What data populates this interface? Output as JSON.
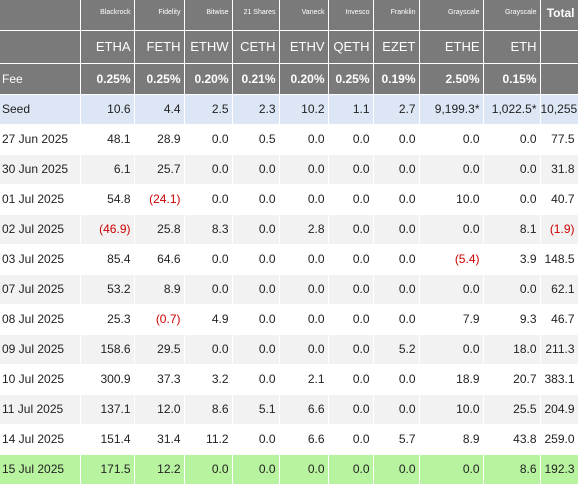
{
  "issuers": [
    "Blackrock",
    "Fidelity",
    "Bitwise",
    "21 Shares",
    "Vaneck",
    "Invesco",
    "Franklin",
    "Grayscale",
    "Grayscale"
  ],
  "total_label": "Total",
  "tickers": [
    "ETHA",
    "FETH",
    "ETHW",
    "CETH",
    "ETHV",
    "QETH",
    "EZET",
    "ETHE",
    "ETH"
  ],
  "fee_label": "Fee",
  "fees": [
    "0.25%",
    "0.25%",
    "0.20%",
    "0.21%",
    "0.20%",
    "0.25%",
    "0.19%",
    "2.50%",
    "0.15%"
  ],
  "rows": [
    {
      "date": "Seed",
      "values": [
        "10.6",
        "4.4",
        "2.5",
        "2.3",
        "10.2",
        "1.1",
        "2.7",
        "9,199.3*",
        "1,022.5*"
      ],
      "total": "10,255",
      "style": "seed"
    },
    {
      "date": "27 Jun 2025",
      "values": [
        "48.1",
        "28.9",
        "0.0",
        "0.5",
        "0.0",
        "0.0",
        "0.0",
        "0.0",
        "0.0"
      ],
      "total": "77.5"
    },
    {
      "date": "30 Jun 2025",
      "values": [
        "6.1",
        "25.7",
        "0.0",
        "0.0",
        "0.0",
        "0.0",
        "0.0",
        "0.0",
        "0.0"
      ],
      "total": "31.8"
    },
    {
      "date": "01 Jul 2025",
      "values": [
        "54.8",
        "(24.1)",
        "0.0",
        "0.0",
        "0.0",
        "0.0",
        "0.0",
        "10.0",
        "0.0"
      ],
      "total": "40.7"
    },
    {
      "date": "02 Jul 2025",
      "values": [
        "(46.9)",
        "25.8",
        "8.3",
        "0.0",
        "2.8",
        "0.0",
        "0.0",
        "0.0",
        "8.1"
      ],
      "total": "(1.9)"
    },
    {
      "date": "03 Jul 2025",
      "values": [
        "85.4",
        "64.6",
        "0.0",
        "0.0",
        "0.0",
        "0.0",
        "0.0",
        "(5.4)",
        "3.9"
      ],
      "total": "148.5"
    },
    {
      "date": "07 Jul 2025",
      "values": [
        "53.2",
        "8.9",
        "0.0",
        "0.0",
        "0.0",
        "0.0",
        "0.0",
        "0.0",
        "0.0"
      ],
      "total": "62.1"
    },
    {
      "date": "08 Jul 2025",
      "values": [
        "25.3",
        "(0.7)",
        "4.9",
        "0.0",
        "0.0",
        "0.0",
        "0.0",
        "7.9",
        "9.3"
      ],
      "total": "46.7"
    },
    {
      "date": "09 Jul 2025",
      "values": [
        "158.6",
        "29.5",
        "0.0",
        "0.0",
        "0.0",
        "0.0",
        "5.2",
        "0.0",
        "18.0"
      ],
      "total": "211.3"
    },
    {
      "date": "10 Jul 2025",
      "values": [
        "300.9",
        "37.3",
        "3.2",
        "0.0",
        "2.1",
        "0.0",
        "0.0",
        "18.9",
        "20.7"
      ],
      "total": "383.1"
    },
    {
      "date": "11 Jul 2025",
      "values": [
        "137.1",
        "12.0",
        "8.6",
        "5.1",
        "6.6",
        "0.0",
        "0.0",
        "10.0",
        "25.5"
      ],
      "total": "204.9"
    },
    {
      "date": "14 Jul 2025",
      "values": [
        "151.4",
        "31.4",
        "11.2",
        "0.0",
        "6.6",
        "0.0",
        "5.7",
        "8.9",
        "43.8"
      ],
      "total": "259.0"
    },
    {
      "date": "15 Jul 2025",
      "values": [
        "171.5",
        "12.2",
        "0.0",
        "0.0",
        "0.0",
        "0.0",
        "0.0",
        "0.0",
        "8.6"
      ],
      "total": "192.3",
      "style": "latest"
    }
  ],
  "colors": {
    "header_bg": "#7a7a7a",
    "negative": "#cc0000",
    "seed_bg": "#dde6f5",
    "latest_bg": "#b8f3a0",
    "alt_bg": "#f2f2f2"
  }
}
